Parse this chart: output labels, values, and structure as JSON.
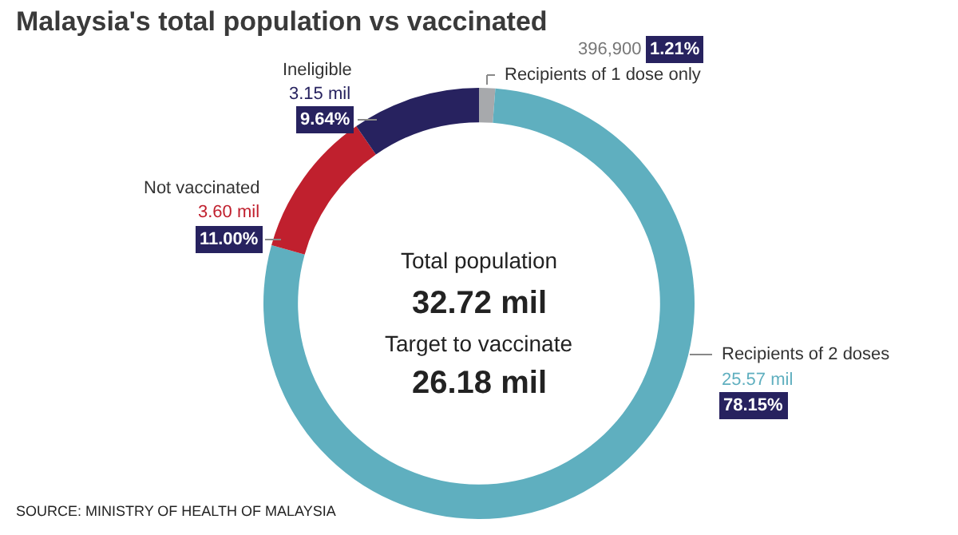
{
  "chart_data": {
    "type": "donut",
    "title": "Malaysia's total population vs vaccinated",
    "categories": [
      "Recipients of 1 dose only",
      "Recipients of 2 doses",
      "Not vaccinated",
      "Ineligible"
    ],
    "values": [
      1.21,
      78.15,
      11.0,
      9.64
    ],
    "colors": [
      "#a7a9ac",
      "#5fafbf",
      "#c0202e",
      "#27225f"
    ],
    "value_labels": [
      "1.21%",
      "78.15%",
      "11.00%",
      "9.64%"
    ],
    "annotations": [
      "396,900",
      "25.57 mil",
      "3.60 mil",
      "3.15 mil",
      "Total population",
      "32.72 mil",
      "Target to vaccinate",
      "26.18 mil",
      "SOURCE: MINISTRY OF HEALTH OF MALAYSIA"
    ],
    "legend": false
  }
}
